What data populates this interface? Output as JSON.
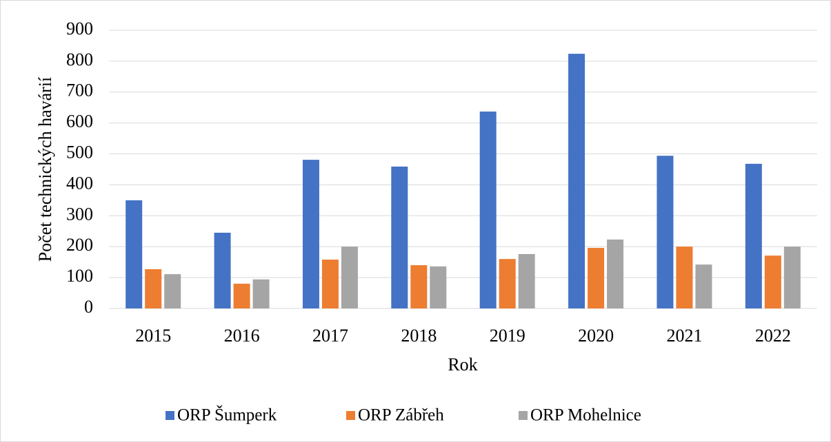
{
  "chart_data": {
    "type": "bar",
    "x_label": "Rok",
    "y_label": "Počet technických havárií",
    "categories": [
      "2015",
      "2016",
      "2017",
      "2018",
      "2019",
      "2020",
      "2021",
      "2022"
    ],
    "series": [
      {
        "name": "ORP Šumperk",
        "color": "#4472c4",
        "values": [
          350,
          245,
          481,
          459,
          637,
          824,
          494,
          468
        ]
      },
      {
        "name": "ORP Zábřeh",
        "color": "#ed7d31",
        "values": [
          127,
          80,
          158,
          140,
          160,
          196,
          200,
          171
        ]
      },
      {
        "name": "ORP Mohelnice",
        "color": "#a5a5a5",
        "values": [
          111,
          94,
          200,
          136,
          176,
          223,
          142,
          200
        ]
      }
    ],
    "ylim": [
      0,
      900
    ],
    "yticks": [
      0,
      100,
      200,
      300,
      400,
      500,
      600,
      700,
      800,
      900
    ],
    "grid": true,
    "legend": "bottom"
  }
}
